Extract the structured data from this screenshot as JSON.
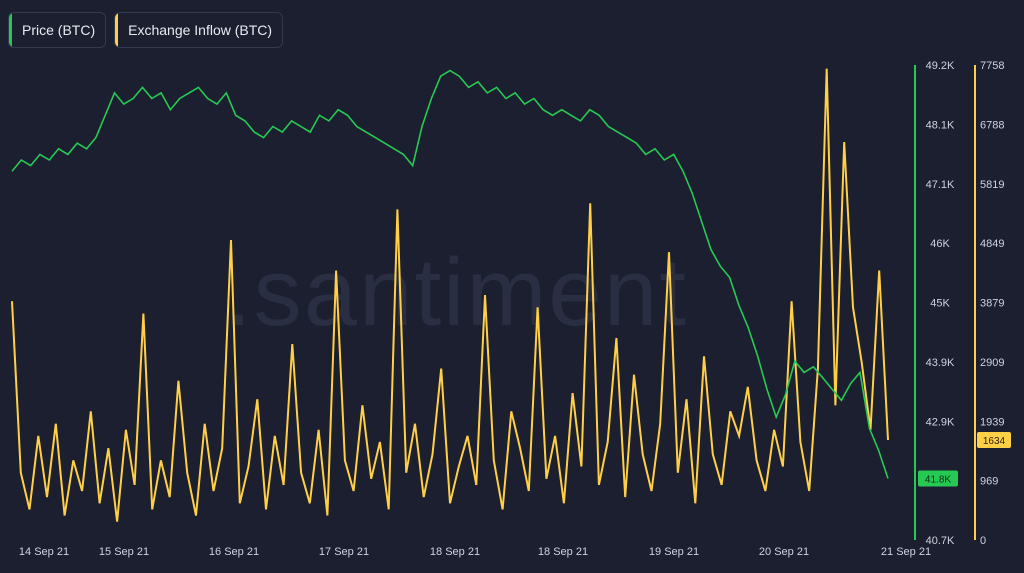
{
  "legend": [
    {
      "label": "Price (BTC)",
      "color": "#26c953"
    },
    {
      "label": "Exchange Inflow (BTC)",
      "color": "#ffd046"
    }
  ],
  "watermark": ".santiment",
  "chart_data": {
    "type": "line",
    "x_ticks": [
      "14 Sep 21",
      "15 Sep 21",
      "16 Sep 21",
      "17 Sep 21",
      "18 Sep 21",
      "18 Sep 21",
      "19 Sep 21",
      "20 Sep 21",
      "21 Sep 21"
    ],
    "series": [
      {
        "name": "Price (BTC)",
        "color": "#26c953",
        "axis": "right-1",
        "ylim": [
          40700,
          49200
        ],
        "y_ticks": [
          "49.2K",
          "48.1K",
          "47.1K",
          "46K",
          "45K",
          "43.9K",
          "42.9K",
          "41.8K",
          "40.7K"
        ],
        "current_value": "41.8K",
        "values": [
          47300,
          47500,
          47400,
          47600,
          47500,
          47700,
          47600,
          47800,
          47700,
          47900,
          48300,
          48700,
          48500,
          48600,
          48800,
          48600,
          48700,
          48400,
          48600,
          48700,
          48800,
          48600,
          48500,
          48700,
          48300,
          48200,
          48000,
          47900,
          48100,
          48000,
          48200,
          48100,
          48000,
          48300,
          48200,
          48400,
          48300,
          48100,
          48000,
          47900,
          47800,
          47700,
          47600,
          47400,
          48100,
          48600,
          49000,
          49100,
          49000,
          48800,
          48900,
          48700,
          48800,
          48600,
          48700,
          48500,
          48600,
          48400,
          48300,
          48400,
          48300,
          48200,
          48400,
          48300,
          48100,
          48000,
          47900,
          47800,
          47600,
          47700,
          47500,
          47600,
          47300,
          46900,
          46400,
          45900,
          45600,
          45400,
          44900,
          44500,
          44000,
          43400,
          42900,
          43300,
          43900,
          43700,
          43800,
          43600,
          43400,
          43200,
          43500,
          43700,
          42700,
          42300,
          41800
        ],
        "ylabel": ""
      },
      {
        "name": "Exchange Inflow (BTC)",
        "color": "#ffd046",
        "axis": "right-2",
        "ylim": [
          0,
          7758
        ],
        "y_ticks": [
          "7758",
          "6788",
          "5819",
          "4849",
          "3879",
          "2909",
          "1939",
          "969",
          "0"
        ],
        "current_value": "1634",
        "values": [
          3900,
          1100,
          500,
          1700,
          700,
          1900,
          400,
          1300,
          800,
          2100,
          600,
          1500,
          300,
          1800,
          900,
          3700,
          500,
          1300,
          700,
          2600,
          1100,
          400,
          1900,
          800,
          1500,
          4900,
          600,
          1200,
          2300,
          500,
          1700,
          900,
          3200,
          1100,
          600,
          1800,
          400,
          4400,
          1300,
          800,
          2200,
          1000,
          1600,
          500,
          5400,
          1100,
          1900,
          700,
          1400,
          2800,
          600,
          1200,
          1700,
          900,
          4000,
          1300,
          500,
          2100,
          1500,
          800,
          3800,
          1000,
          1700,
          600,
          2400,
          1200,
          5500,
          900,
          1600,
          3300,
          700,
          2700,
          1400,
          800,
          1900,
          4700,
          1100,
          2300,
          600,
          3000,
          1400,
          900,
          2100,
          1700,
          2500,
          1300,
          800,
          1800,
          1200,
          3900,
          1600,
          800,
          2800,
          7700,
          2200,
          6500,
          3800,
          2900,
          1800,
          4400,
          1634
        ],
        "ylabel": ""
      }
    ],
    "grid": false,
    "legend_placement": "top-left"
  }
}
